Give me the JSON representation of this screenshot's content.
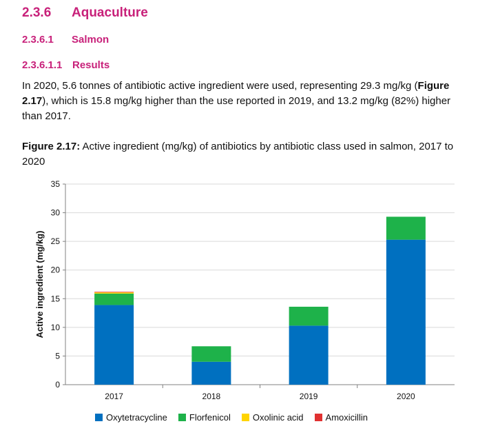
{
  "headings": {
    "h1": {
      "number": "2.3.6",
      "title": "Aquaculture"
    },
    "h2": {
      "number": "2.3.6.1",
      "title": "Salmon"
    },
    "h3": {
      "number": "2.3.6.1.1",
      "title": "Results"
    }
  },
  "paragraph": {
    "part1": "In 2020, 5.6 tonnes of antibiotic active ingredient were used, representing 29.3 mg/kg (",
    "ref": "Figure 2.17",
    "part2": "), which is 15.8 mg/kg higher than the use reported in 2019, and 13.2 mg/kg (82%) higher than 2017."
  },
  "caption": {
    "label": "Figure 2.17:",
    "text": " Active ingredient (mg/kg) of antibiotics by antibiotic class used in salmon, 2017 to 2020"
  },
  "colors": {
    "heading": "#c8217a",
    "Oxytetracycline": "#0070c0",
    "Florfenicol": "#1eb24a",
    "Oxolinic acid": "#ffd400",
    "Amoxicillin": "#e03131"
  },
  "chart_data": {
    "type": "bar",
    "stacked": true,
    "categories": [
      "2017",
      "2018",
      "2019",
      "2020"
    ],
    "series": [
      {
        "name": "Oxytetracycline",
        "values": [
          13.9,
          4.0,
          10.3,
          25.3
        ]
      },
      {
        "name": "Florfenicol",
        "values": [
          2.0,
          2.7,
          3.3,
          4.0
        ]
      },
      {
        "name": "Oxolinic acid",
        "values": [
          0.2,
          0.0,
          0.0,
          0.0
        ]
      },
      {
        "name": "Amoxicillin",
        "values": [
          0.1,
          0.0,
          0.0,
          0.0
        ]
      }
    ],
    "title": "",
    "xlabel": "",
    "ylabel": "Active ingredient (mg/kg)",
    "ylim": [
      0,
      35
    ],
    "yticks": [
      "0",
      "5",
      "10",
      "15",
      "20",
      "25",
      "30",
      "35"
    ],
    "grid": true,
    "legend": "bottom"
  }
}
